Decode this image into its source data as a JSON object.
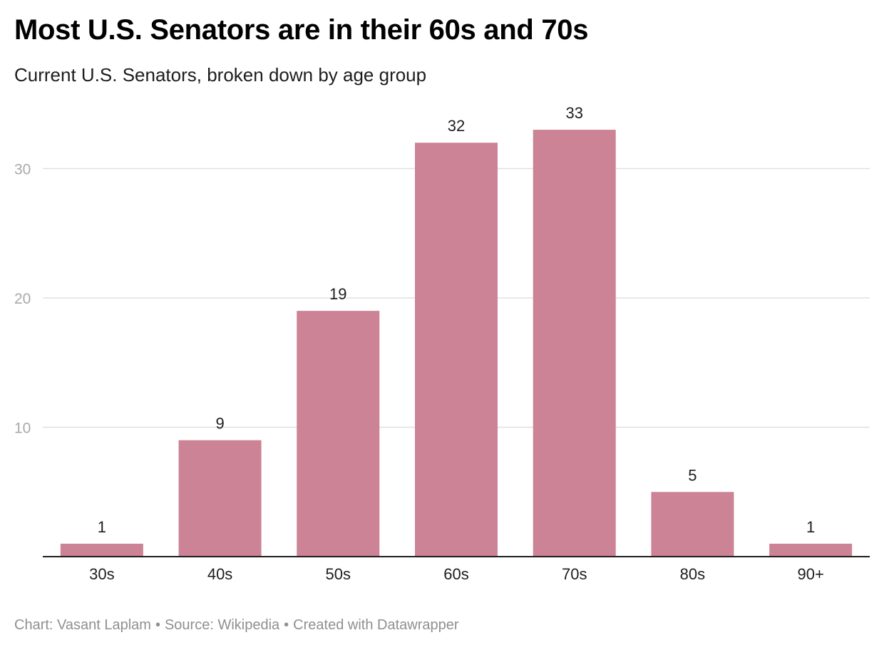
{
  "title": "Most U.S. Senators are in their 60s and 70s",
  "subtitle": "Current U.S. Senators, broken down by age group",
  "footer": {
    "chart_credit": "Chart: Vasant Laplam",
    "source": "Source: Wikipedia",
    "created_with": "Created with Datawrapper",
    "separator": "•"
  },
  "colors": {
    "bar": "#cc8396",
    "grid": "#e0e0e0",
    "axis": "#1d1d1d",
    "tick_label": "#a9a9a9",
    "value_label": "#1d1d1d",
    "footer": "#8f8f8f"
  },
  "chart_data": {
    "type": "bar",
    "title": "Most U.S. Senators are in their 60s and 70s",
    "subtitle": "Current U.S. Senators, broken down by age group",
    "categories": [
      "30s",
      "40s",
      "50s",
      "60s",
      "70s",
      "80s",
      "90+"
    ],
    "values": [
      1,
      9,
      19,
      32,
      33,
      5,
      1
    ],
    "ylim": [
      0,
      33
    ],
    "yticks": [
      10,
      20,
      30
    ],
    "grid": true,
    "legend": false,
    "data_labels": true
  }
}
